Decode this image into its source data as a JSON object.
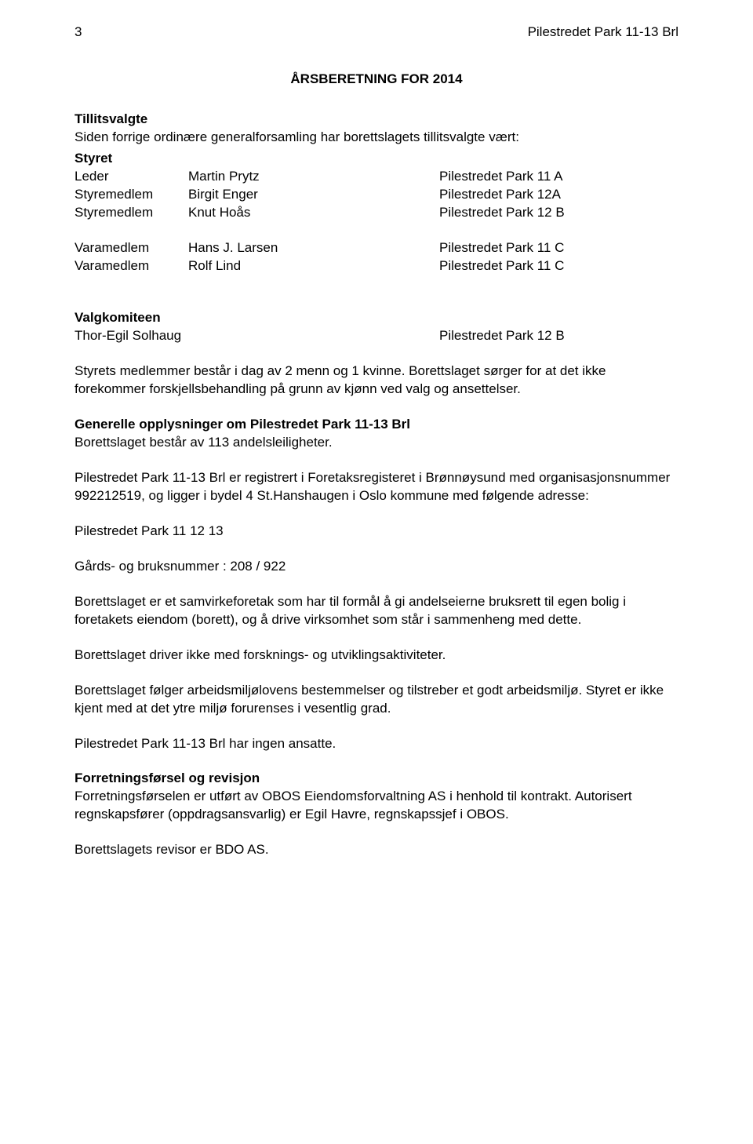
{
  "page_number": "3",
  "header_right": "Pilestredet Park 11-13 Brl",
  "main_title": "ÅRSBERETNING FOR 2014",
  "tillitsvalgte_heading": "Tillitsvalgte",
  "tillitsvalgte_intro": "Siden forrige ordinære generalforsamling har borettslagets tillitsvalgte vært:",
  "styret_heading": "Styret",
  "styret_rows": [
    {
      "role": "Leder",
      "name": "Martin Prytz",
      "address": "Pilestredet Park 11 A"
    },
    {
      "role": "Styremedlem",
      "name": "Birgit Enger",
      "address": "Pilestredet Park 12A"
    },
    {
      "role": "Styremedlem",
      "name": "Knut Hoås",
      "address": "Pilestredet Park 12 B"
    }
  ],
  "vara_rows": [
    {
      "role": "Varamedlem",
      "name": "Hans J. Larsen",
      "address": "Pilestredet Park 11 C"
    },
    {
      "role": "Varamedlem",
      "name": "Rolf Lind",
      "address": "Pilestredet Park 11 C"
    }
  ],
  "valgkomiteen_heading": "Valgkomiteen",
  "valgkomiteen_row": {
    "name": "Thor-Egil Solhaug",
    "address": "Pilestredet Park 12 B"
  },
  "medlemmer_para": "Styrets medlemmer består i dag av 2 menn og 1 kvinne. Borettslaget sørger for at det ikke forekommer forskjellsbehandling på grunn av kjønn ved valg og ansettelser.",
  "generelle_heading": "Generelle opplysninger om Pilestredet Park 11-13 Brl",
  "generelle_line": "Borettslaget består av 113 andelsleiligheter.",
  "registrert_para": "Pilestredet Park 11-13 Brl er registrert i Foretaksregisteret i Brønnøysund med organisasjonsnummer 992212519, og ligger i bydel 4 St.Hanshaugen i Oslo kommune med følgende adresse:",
  "address_line": "Pilestredet Park 11 12 13",
  "gaardsnummer": "Gårds- og bruksnummer : 208 / 922",
  "formaal_para": "Borettslaget er et samvirkeforetak som har til formål å gi andelseierne bruksrett til egen bolig i foretakets eiendom (borett), og å drive virksomhet som står i sammenheng med dette.",
  "forsknings_line": "Borettslaget driver ikke med forsknings- og utviklingsaktiviteter.",
  "arbeidsmiljo_para": "Borettslaget følger arbeidsmiljølovens bestemmelser og tilstreber et godt arbeidsmiljø. Styret er ikke kjent med at det ytre miljø forurenses i vesentlig grad.",
  "ansatte_line": "Pilestredet Park 11-13 Brl har ingen ansatte.",
  "forretningsforsel_heading": "Forretningsførsel og revisjon",
  "forretningsforsel_para": "Forretningsførselen er utført av OBOS Eiendomsforvaltning AS i henhold til kontrakt. Autorisert regnskapsfører (oppdragsansvarlig) er Egil Havre, regnskapssjef i OBOS.",
  "revisor_line": "Borettslagets revisor er BDO AS."
}
